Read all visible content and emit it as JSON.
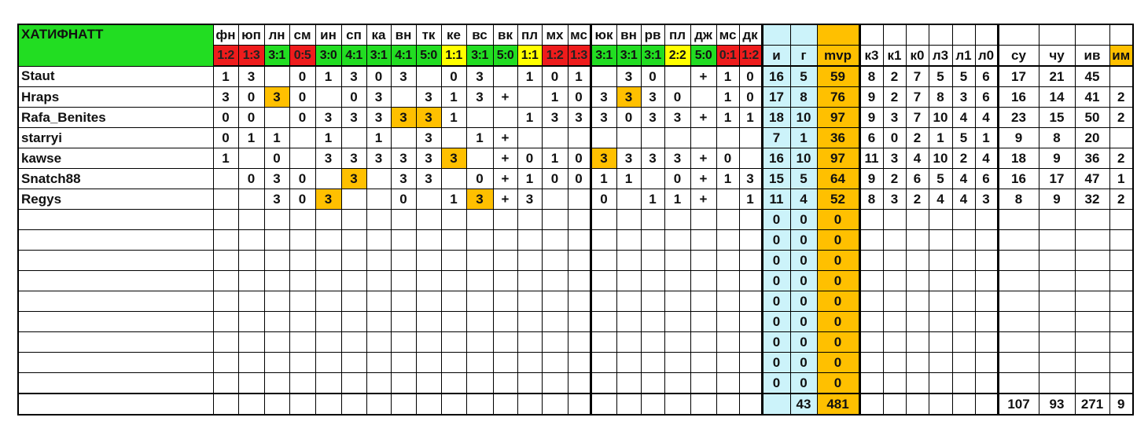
{
  "team": "ХАТИФНАТТ",
  "colors": {
    "win": "#22dd22",
    "loss": "#ee1c1c",
    "draw": "#ffff00",
    "highlight": "#ffc000",
    "stat": "#ccf3fa"
  },
  "matches": [
    {
      "opp": "фн",
      "score": "1:2",
      "result": "loss"
    },
    {
      "opp": "юп",
      "score": "1:3",
      "result": "loss"
    },
    {
      "opp": "лн",
      "score": "3:1",
      "result": "win"
    },
    {
      "opp": "см",
      "score": "0:5",
      "result": "loss"
    },
    {
      "opp": "ин",
      "score": "3:0",
      "result": "win"
    },
    {
      "opp": "сп",
      "score": "4:1",
      "result": "win"
    },
    {
      "opp": "ка",
      "score": "3:1",
      "result": "win"
    },
    {
      "opp": "вн",
      "score": "4:1",
      "result": "win"
    },
    {
      "opp": "тк",
      "score": "5:0",
      "result": "win"
    },
    {
      "opp": "ке",
      "score": "1:1",
      "result": "draw"
    },
    {
      "opp": "вс",
      "score": "3:1",
      "result": "win"
    },
    {
      "opp": "вк",
      "score": "5:0",
      "result": "win"
    },
    {
      "opp": "пл",
      "score": "1:1",
      "result": "draw"
    },
    {
      "opp": "мх",
      "score": "1:2",
      "result": "loss"
    },
    {
      "opp": "мс",
      "score": "1:3",
      "result": "loss"
    },
    {
      "opp": "юк",
      "score": "3:1",
      "result": "win"
    },
    {
      "opp": "вн",
      "score": "3:1",
      "result": "win"
    },
    {
      "opp": "рв",
      "score": "3:1",
      "result": "win"
    },
    {
      "opp": "пл",
      "score": "2:2",
      "result": "draw"
    },
    {
      "opp": "дж",
      "score": "5:0",
      "result": "win"
    },
    {
      "opp": "мс",
      "score": "0:1",
      "result": "loss"
    },
    {
      "opp": "дк",
      "score": "1:2",
      "result": "loss"
    }
  ],
  "stat_headers": [
    "и",
    "г",
    "mvp",
    "к3",
    "к1",
    "к0",
    "л3",
    "л1",
    "л0",
    "су",
    "чу",
    "ив",
    "им"
  ],
  "players": [
    {
      "name": "Staut",
      "marks": [
        "1",
        "3",
        "",
        "0",
        "1",
        "3",
        "0",
        "3",
        "",
        "0",
        "3",
        "",
        "1",
        "0",
        "1",
        "",
        "3",
        "0",
        "",
        "+",
        "1",
        "0"
      ],
      "highlight": [],
      "stats": [
        "16",
        "5",
        "59",
        "8",
        "2",
        "7",
        "5",
        "5",
        "6",
        "17",
        "21",
        "45",
        ""
      ]
    },
    {
      "name": "Hraps",
      "marks": [
        "3",
        "0",
        "3",
        "0",
        "",
        "0",
        "3",
        "",
        "3",
        "1",
        "3",
        "+",
        "",
        "1",
        "0",
        "3",
        "3",
        "3",
        "0",
        "",
        "1",
        "0"
      ],
      "highlight": [
        2,
        16
      ],
      "stats": [
        "17",
        "8",
        "76",
        "9",
        "2",
        "7",
        "8",
        "3",
        "6",
        "16",
        "14",
        "41",
        "2"
      ]
    },
    {
      "name": "Rafa_Benites",
      "marks": [
        "0",
        "0",
        "",
        "0",
        "3",
        "3",
        "3",
        "3",
        "3",
        "1",
        "",
        "",
        "1",
        "3",
        "3",
        "3",
        "0",
        "3",
        "3",
        "+",
        "1",
        "1"
      ],
      "highlight": [
        7,
        8
      ],
      "stats": [
        "18",
        "10",
        "97",
        "9",
        "3",
        "7",
        "10",
        "4",
        "4",
        "23",
        "15",
        "50",
        "2"
      ]
    },
    {
      "name": "starryi",
      "marks": [
        "0",
        "1",
        "1",
        "",
        "1",
        "",
        "1",
        "",
        "3",
        "",
        "1",
        "+",
        "",
        "",
        "",
        "",
        "",
        "",
        "",
        "",
        "",
        ""
      ],
      "highlight": [],
      "stats": [
        "7",
        "1",
        "36",
        "6",
        "0",
        "2",
        "1",
        "5",
        "1",
        "9",
        "8",
        "20",
        ""
      ]
    },
    {
      "name": "kawse",
      "marks": [
        "1",
        "",
        "0",
        "",
        "3",
        "3",
        "3",
        "3",
        "3",
        "3",
        "",
        "+",
        "0",
        "1",
        "0",
        "3",
        "3",
        "3",
        "3",
        "+",
        "0",
        ""
      ],
      "highlight": [
        9,
        15
      ],
      "stats": [
        "16",
        "10",
        "97",
        "11",
        "3",
        "4",
        "10",
        "2",
        "4",
        "18",
        "9",
        "36",
        "2"
      ]
    },
    {
      "name": "Snatch88",
      "marks": [
        "",
        "0",
        "3",
        "0",
        "",
        "3",
        "",
        "3",
        "3",
        "",
        "0",
        "+",
        "1",
        "0",
        "0",
        "1",
        "1",
        "",
        "0",
        "+",
        "1",
        "3"
      ],
      "highlight": [
        5
      ],
      "stats": [
        "15",
        "5",
        "64",
        "9",
        "2",
        "6",
        "5",
        "4",
        "6",
        "16",
        "17",
        "47",
        "1"
      ]
    },
    {
      "name": "Regys",
      "marks": [
        "",
        "",
        "3",
        "0",
        "3",
        "",
        "",
        "0",
        "",
        "1",
        "3",
        "+",
        "3",
        "",
        "",
        "0",
        "",
        "1",
        "1",
        "+",
        "",
        "1"
      ],
      "highlight": [
        4,
        10
      ],
      "stats": [
        "11",
        "4",
        "52",
        "8",
        "3",
        "2",
        "4",
        "4",
        "3",
        "8",
        "9",
        "32",
        "2"
      ]
    }
  ],
  "empty_rows": 9,
  "empty_row_stats": [
    "0",
    "0",
    "0"
  ],
  "totals": [
    "",
    "43",
    "481",
    "",
    "",
    "",
    "",
    "",
    "",
    "107",
    "93",
    "271",
    "9"
  ]
}
